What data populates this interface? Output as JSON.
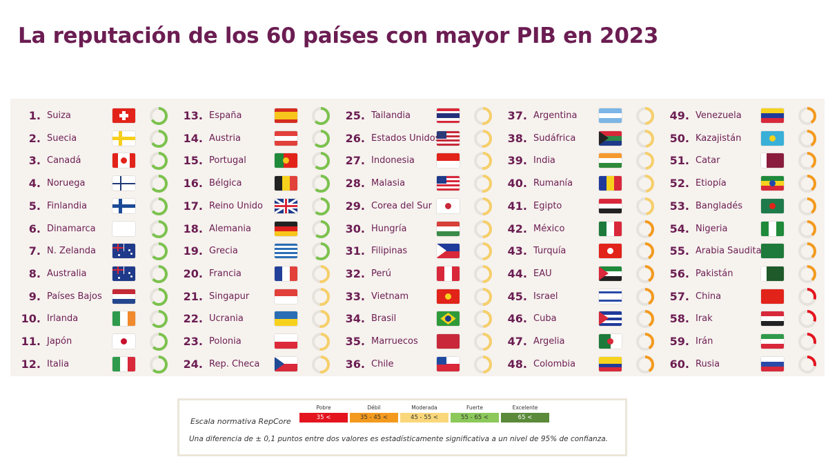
{
  "title": "La reputación de los 60 países con mayor PIB en 2023",
  "level_colors": {
    "excelente": "#5a8a3a",
    "fuerte": "#7cc24e",
    "moderada": "#f6cf6a",
    "debil": "#f39a1e",
    "pobre": "#e3141e",
    "track": "#e6e2dc"
  },
  "countries": [
    {
      "rank": "1.",
      "name": "Suiza",
      "level": "fuerte",
      "fill": 0.66,
      "flag": {
        "bg": "#e2231a",
        "plus": "#ffffff"
      }
    },
    {
      "rank": "2.",
      "name": "Suecia",
      "level": "fuerte",
      "fill": 0.65,
      "flag": {
        "nordic": [
          "#2a6db5",
          "#f7cf1c"
        ]
      }
    },
    {
      "rank": "3.",
      "name": "Canadá",
      "level": "fuerte",
      "fill": 0.65,
      "flag": {
        "d": "v",
        "c": [
          "#e2231a",
          "#ffffff",
          "#ffffff",
          "#e2231a"
        ],
        "dot": "#e2231a"
      }
    },
    {
      "rank": "4.",
      "name": "Noruega",
      "level": "fuerte",
      "fill": 0.64,
      "flag": {
        "nordic": [
          "#e2403a",
          "#ffffff",
          "#203a78"
        ]
      }
    },
    {
      "rank": "5.",
      "name": "Finlandia",
      "level": "fuerte",
      "fill": 0.64,
      "flag": {
        "nordic": [
          "#ffffff",
          "#1b4a96"
        ]
      }
    },
    {
      "rank": "6.",
      "name": "Dinamarca",
      "level": "fuerte",
      "fill": 0.64,
      "flag": {
        "nordic": [
          "#d8283a",
          "#ffffff"
        ]
      }
    },
    {
      "rank": "7.",
      "name": "N. Zelanda",
      "level": "fuerte",
      "fill": 0.63,
      "flag": {
        "bg": "#1f3a8a",
        "union": true
      }
    },
    {
      "rank": "8.",
      "name": "Australia",
      "level": "fuerte",
      "fill": 0.63,
      "flag": {
        "bg": "#1f3a8a",
        "union": true
      }
    },
    {
      "rank": "9.",
      "name": "Países Bajos",
      "level": "fuerte",
      "fill": 0.63,
      "flag": {
        "d": "h",
        "c": [
          "#c42a35",
          "#ffffff",
          "#24468e"
        ]
      }
    },
    {
      "rank": "10.",
      "name": "Irlanda",
      "level": "fuerte",
      "fill": 0.63,
      "flag": {
        "d": "v",
        "c": [
          "#2f9a4c",
          "#ffffff",
          "#f08a2c"
        ]
      }
    },
    {
      "rank": "11.",
      "name": "Japón",
      "level": "fuerte",
      "fill": 0.62,
      "flag": {
        "bg": "#ffffff",
        "dot": "#c8102e"
      }
    },
    {
      "rank": "12.",
      "name": "Italia",
      "level": "fuerte",
      "fill": 0.62,
      "flag": {
        "d": "v",
        "c": [
          "#2f9a4c",
          "#ffffff",
          "#d8283a"
        ]
      }
    },
    {
      "rank": "13.",
      "name": "España",
      "level": "fuerte",
      "fill": 0.62,
      "flag": {
        "d": "h",
        "c": [
          "#d52b1e",
          "#f7c51c",
          "#f7c51c",
          "#d52b1e"
        ]
      }
    },
    {
      "rank": "14.",
      "name": "Austria",
      "level": "fuerte",
      "fill": 0.62,
      "flag": {
        "d": "h",
        "c": [
          "#e2403a",
          "#ffffff",
          "#e2403a"
        ]
      }
    },
    {
      "rank": "15.",
      "name": "Portugal",
      "level": "fuerte",
      "fill": 0.61,
      "flag": {
        "d": "v",
        "c": [
          "#1e8a3a",
          "#1e8a3a",
          "#e2231a",
          "#e2231a",
          "#e2231a"
        ],
        "dot": "#f7c51c"
      }
    },
    {
      "rank": "16.",
      "name": "Bélgica",
      "level": "fuerte",
      "fill": 0.61,
      "flag": {
        "d": "v",
        "c": [
          "#222222",
          "#f7d21c",
          "#e2403a"
        ]
      }
    },
    {
      "rank": "17.",
      "name": "Reino Unido",
      "level": "fuerte",
      "fill": 0.61,
      "flag": {
        "bg": "#1f3a8a",
        "uk": true
      }
    },
    {
      "rank": "18.",
      "name": "Alemania",
      "level": "fuerte",
      "fill": 0.6,
      "flag": {
        "d": "h",
        "c": [
          "#222222",
          "#dd1e1e",
          "#f7c51c"
        ]
      }
    },
    {
      "rank": "19.",
      "name": "Grecia",
      "level": "fuerte",
      "fill": 0.6,
      "flag": {
        "d": "h",
        "c": [
          "#2a6db5",
          "#ffffff",
          "#2a6db5",
          "#ffffff",
          "#2a6db5",
          "#ffffff",
          "#2a6db5"
        ]
      }
    },
    {
      "rank": "20.",
      "name": "Francia",
      "level": "moderada",
      "fill": 0.52,
      "flag": {
        "d": "v",
        "c": [
          "#22409a",
          "#ffffff",
          "#e2403a"
        ]
      }
    },
    {
      "rank": "21.",
      "name": "Singapur",
      "level": "moderada",
      "fill": 0.52,
      "flag": {
        "d": "h",
        "c": [
          "#e2403a",
          "#ffffff"
        ]
      }
    },
    {
      "rank": "22.",
      "name": "Ucrania",
      "level": "moderada",
      "fill": 0.52,
      "flag": {
        "d": "h",
        "c": [
          "#2a6db5",
          "#f7d21c"
        ]
      }
    },
    {
      "rank": "23.",
      "name": "Polonia",
      "level": "moderada",
      "fill": 0.52,
      "flag": {
        "d": "h",
        "c": [
          "#ffffff",
          "#dd2a3a"
        ]
      }
    },
    {
      "rank": "24.",
      "name": "Rep. Checa",
      "level": "moderada",
      "fill": 0.51,
      "flag": {
        "d": "h",
        "c": [
          "#ffffff",
          "#d8283a"
        ],
        "tri": "#1f4a96"
      }
    },
    {
      "rank": "25.",
      "name": "Tailandia",
      "level": "moderada",
      "fill": 0.51,
      "flag": {
        "d": "h",
        "c": [
          "#d8283a",
          "#ffffff",
          "#24307a",
          "#24307a",
          "#ffffff",
          "#d8283a"
        ]
      }
    },
    {
      "rank": "26.",
      "name": "Estados Unidos",
      "level": "moderada",
      "fill": 0.51,
      "flag": {
        "d": "h",
        "c": [
          "#c8283a",
          "#ffffff",
          "#c8283a",
          "#ffffff",
          "#c8283a",
          "#ffffff",
          "#c8283a"
        ],
        "canton": "#2c3a78"
      }
    },
    {
      "rank": "27.",
      "name": "Indonesia",
      "level": "moderada",
      "fill": 0.51,
      "flag": {
        "d": "h",
        "c": [
          "#e2231a",
          "#ffffff"
        ]
      }
    },
    {
      "rank": "28.",
      "name": "Malasia",
      "level": "moderada",
      "fill": 0.51,
      "flag": {
        "d": "h",
        "c": [
          "#d8283a",
          "#ffffff",
          "#d8283a",
          "#ffffff",
          "#d8283a",
          "#ffffff",
          "#d8283a"
        ],
        "canton": "#1f3a8a"
      }
    },
    {
      "rank": "29.",
      "name": "Corea del Sur",
      "level": "moderada",
      "fill": 0.5,
      "flag": {
        "bg": "#ffffff",
        "dot": "#c8283a"
      }
    },
    {
      "rank": "30.",
      "name": "Hungría",
      "level": "moderada",
      "fill": 0.5,
      "flag": {
        "d": "h",
        "c": [
          "#d8403a",
          "#ffffff",
          "#3a8a4a"
        ]
      }
    },
    {
      "rank": "31.",
      "name": "Filipinas",
      "level": "moderada",
      "fill": 0.5,
      "flag": {
        "d": "h",
        "c": [
          "#1f3a9a",
          "#d8283a"
        ],
        "tri": "#ffffff"
      }
    },
    {
      "rank": "32.",
      "name": "Perú",
      "level": "moderada",
      "fill": 0.5,
      "flag": {
        "d": "v",
        "c": [
          "#d8283a",
          "#ffffff",
          "#d8283a"
        ]
      }
    },
    {
      "rank": "33.",
      "name": "Vietnam",
      "level": "moderada",
      "fill": 0.5,
      "flag": {
        "bg": "#e2231a",
        "dot": "#f7d21c"
      }
    },
    {
      "rank": "34.",
      "name": "Brasil",
      "level": "moderada",
      "fill": 0.49,
      "flag": {
        "bg": "#2f9a3a",
        "diamond": "#f7d21c",
        "dot": "#1f3a8a"
      }
    },
    {
      "rank": "35.",
      "name": "Marruecos",
      "level": "moderada",
      "fill": 0.49,
      "flag": {
        "bg": "#c8283a"
      }
    },
    {
      "rank": "36.",
      "name": "Chile",
      "level": "moderada",
      "fill": 0.49,
      "flag": {
        "d": "h",
        "c": [
          "#ffffff",
          "#d8283a"
        ],
        "canton": "#1f4aa0"
      }
    },
    {
      "rank": "37.",
      "name": "Argentina",
      "level": "moderada",
      "fill": 0.49,
      "flag": {
        "d": "h",
        "c": [
          "#7cb6e6",
          "#ffffff",
          "#7cb6e6"
        ]
      }
    },
    {
      "rank": "38.",
      "name": "Sudáfrica",
      "level": "moderada",
      "fill": 0.48,
      "flag": {
        "d": "h",
        "c": [
          "#d8283a",
          "#2f8a4a",
          "#1f3a8a"
        ],
        "tri": "#222222"
      }
    },
    {
      "rank": "39.",
      "name": "India",
      "level": "moderada",
      "fill": 0.48,
      "flag": {
        "d": "h",
        "c": [
          "#f59a30",
          "#ffffff",
          "#2f8a3a"
        ]
      }
    },
    {
      "rank": "40.",
      "name": "Rumanía",
      "level": "moderada",
      "fill": 0.48,
      "flag": {
        "d": "v",
        "c": [
          "#1f3a9a",
          "#f7d21c",
          "#d8283a"
        ]
      }
    },
    {
      "rank": "41.",
      "name": "Egipto",
      "level": "moderada",
      "fill": 0.47,
      "flag": {
        "d": "h",
        "c": [
          "#d8283a",
          "#ffffff",
          "#222222"
        ]
      }
    },
    {
      "rank": "42.",
      "name": "México",
      "level": "debil",
      "fill": 0.42,
      "flag": {
        "d": "v",
        "c": [
          "#1e7a3a",
          "#ffffff",
          "#d8283a"
        ]
      }
    },
    {
      "rank": "43.",
      "name": "Turquía",
      "level": "debil",
      "fill": 0.42,
      "flag": {
        "bg": "#e2231a",
        "dot": "#ffffff"
      }
    },
    {
      "rank": "44.",
      "name": "EAU",
      "level": "debil",
      "fill": 0.42,
      "flag": {
        "d": "h",
        "c": [
          "#1e8a3a",
          "#ffffff",
          "#222222"
        ],
        "tri": "#d8283a"
      }
    },
    {
      "rank": "45.",
      "name": "Israel",
      "level": "debil",
      "fill": 0.42,
      "flag": {
        "d": "h",
        "c": [
          "#ffffff",
          "#2a4aa8",
          "#ffffff",
          "#ffffff",
          "#ffffff",
          "#2a4aa8",
          "#ffffff"
        ]
      }
    },
    {
      "rank": "46.",
      "name": "Cuba",
      "level": "debil",
      "fill": 0.41,
      "flag": {
        "d": "h",
        "c": [
          "#1f3a9a",
          "#ffffff",
          "#1f3a9a",
          "#ffffff",
          "#1f3a9a"
        ],
        "tri": "#d8283a"
      }
    },
    {
      "rank": "47.",
      "name": "Argelia",
      "level": "debil",
      "fill": 0.41,
      "flag": {
        "d": "v",
        "c": [
          "#1e7a3a",
          "#ffffff"
        ],
        "dot": "#d8283a"
      }
    },
    {
      "rank": "48.",
      "name": "Colombia",
      "level": "debil",
      "fill": 0.41,
      "flag": {
        "d": "h",
        "c": [
          "#f7d21c",
          "#f7d21c",
          "#1f3a9a",
          "#d8283a"
        ]
      }
    },
    {
      "rank": "49.",
      "name": "Venezuela",
      "level": "debil",
      "fill": 0.41,
      "flag": {
        "d": "h",
        "c": [
          "#f7d21c",
          "#1f3a9a",
          "#d8283a"
        ]
      }
    },
    {
      "rank": "50.",
      "name": "Kazajistán",
      "level": "debil",
      "fill": 0.41,
      "flag": {
        "bg": "#3ab0d8",
        "dot": "#f7d21c"
      }
    },
    {
      "rank": "51.",
      "name": "Catar",
      "level": "debil",
      "fill": 0.4,
      "flag": {
        "d": "v",
        "c": [
          "#ffffff",
          "#8a1d3e",
          "#8a1d3e",
          "#8a1d3e"
        ]
      }
    },
    {
      "rank": "52.",
      "name": "Etiopía",
      "level": "debil",
      "fill": 0.4,
      "flag": {
        "d": "h",
        "c": [
          "#1e8a3a",
          "#f7d21c",
          "#d8283a"
        ],
        "dot": "#1f4aa8"
      }
    },
    {
      "rank": "53.",
      "name": "Bangladés",
      "level": "debil",
      "fill": 0.4,
      "flag": {
        "bg": "#1e7a4a",
        "dot": "#e2231a"
      }
    },
    {
      "rank": "54.",
      "name": "Nigeria",
      "level": "debil",
      "fill": 0.39,
      "flag": {
        "d": "v",
        "c": [
          "#1e8a3a",
          "#ffffff",
          "#1e8a3a"
        ]
      }
    },
    {
      "rank": "55.",
      "name": "Arabia Saudita",
      "level": "debil",
      "fill": 0.39,
      "flag": {
        "bg": "#1e7a3a"
      }
    },
    {
      "rank": "56.",
      "name": "Pakistán",
      "level": "debil",
      "fill": 0.39,
      "flag": {
        "d": "v",
        "c": [
          "#ffffff",
          "#1e5a2a",
          "#1e5a2a",
          "#1e5a2a"
        ]
      }
    },
    {
      "rank": "57.",
      "name": "China",
      "level": "pobre",
      "fill": 0.3,
      "flag": {
        "bg": "#e2231a"
      }
    },
    {
      "rank": "58.",
      "name": "Irak",
      "level": "pobre",
      "fill": 0.3,
      "flag": {
        "d": "h",
        "c": [
          "#d8283a",
          "#ffffff",
          "#222222"
        ]
      }
    },
    {
      "rank": "59.",
      "name": "Irán",
      "level": "pobre",
      "fill": 0.29,
      "flag": {
        "d": "h",
        "c": [
          "#2f9a4a",
          "#ffffff",
          "#d8283a"
        ]
      }
    },
    {
      "rank": "60.",
      "name": "Rusia",
      "level": "pobre",
      "fill": 0.28,
      "flag": {
        "d": "h",
        "c": [
          "#ffffff",
          "#2a4aa8",
          "#d8283a"
        ]
      }
    }
  ],
  "legend": {
    "label": "Escala normativa RepCore",
    "scale": [
      {
        "title": "Pobre",
        "range": "35 <",
        "color": "#e3141e",
        "text": "#ffffff"
      },
      {
        "title": "Débil",
        "range": "35 - 45 <",
        "color": "#f39a1e",
        "text": "#333333"
      },
      {
        "title": "Moderada",
        "range": "45 - 55 <",
        "color": "#f9d77a",
        "text": "#333333"
      },
      {
        "title": "Fuerte",
        "range": "55 - 65 <",
        "color": "#8cc85a",
        "text": "#333333"
      },
      {
        "title": "Excelente",
        "range": "65 <",
        "color": "#5a8a3a",
        "text": "#ffffff"
      }
    ],
    "note": "Una diferencia de ± 0,1 puntos entre dos valores es estadísticamente significativa a un nivel de 95% de confianza."
  }
}
